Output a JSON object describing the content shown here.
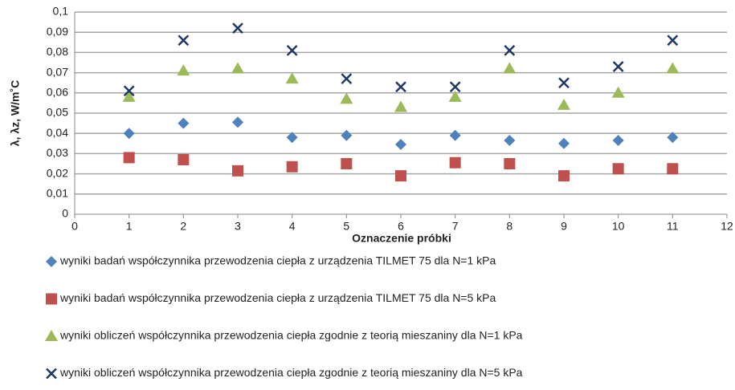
{
  "chart_data": {
    "type": "scatter",
    "x_label": "Oznaczenie próbki",
    "y_label": "λ, λz, W/m˚C",
    "x": [
      1,
      2,
      3,
      4,
      5,
      6,
      7,
      8,
      9,
      10,
      11
    ],
    "xlim": [
      0,
      12
    ],
    "xticks": [
      0,
      1,
      2,
      3,
      4,
      5,
      6,
      7,
      8,
      9,
      10,
      11,
      12
    ],
    "ylim": [
      0,
      0.1
    ],
    "yticks": [
      0,
      {
        "value": 0.01,
        "label": "0,01"
      },
      {
        "value": 0.02,
        "label": "0,02"
      },
      {
        "value": 0.03,
        "label": "0,03"
      },
      {
        "value": 0.04,
        "label": "0,04"
      },
      {
        "value": 0.05,
        "label": "0,05"
      },
      {
        "value": 0.06,
        "label": "0,06"
      },
      {
        "value": 0.07,
        "label": "0,07"
      },
      {
        "value": 0.08,
        "label": "0,08"
      },
      {
        "value": 0.09,
        "label": "0,09"
      },
      {
        "value": 0.1,
        "label": "0,1"
      }
    ],
    "grid": true,
    "legend": "bottom",
    "series": [
      {
        "name": "wyniki badań współczynnika przewodzenia ciepła z urządzenia TILMET 75 dla N=1 kPa",
        "color": "#4f81bd",
        "marker": "diamond",
        "values": [
          0.04,
          0.045,
          0.0455,
          0.038,
          0.039,
          0.0345,
          0.039,
          0.0365,
          0.035,
          0.0365,
          0.038
        ]
      },
      {
        "name": "wyniki badań współczynnika przewodzenia ciepła z urządzenia TILMET 75 dla N=5 kPa",
        "color": "#c0504d",
        "marker": "square",
        "values": [
          0.028,
          0.027,
          0.0215,
          0.0235,
          0.025,
          0.019,
          0.0255,
          0.025,
          0.019,
          0.0225,
          0.0225
        ]
      },
      {
        "name": "wyniki obliczeń współczynnika przewodzenia ciepła zgodnie z teorią mieszaniny dla N=1 kPa",
        "color": "#9bbb59",
        "marker": "triangle",
        "values": [
          0.058,
          0.071,
          0.072,
          0.067,
          0.057,
          0.053,
          0.058,
          0.072,
          0.054,
          0.06,
          0.072
        ]
      },
      {
        "name": "wyniki obliczeń współczynnika przewodzenia ciepła zgodnie z teorią mieszaniny dla N=5 kPa",
        "color": "#1f3864",
        "marker": "x",
        "values": [
          0.061,
          0.086,
          0.092,
          0.081,
          0.067,
          0.063,
          0.063,
          0.081,
          0.065,
          0.073,
          0.086
        ]
      }
    ]
  }
}
